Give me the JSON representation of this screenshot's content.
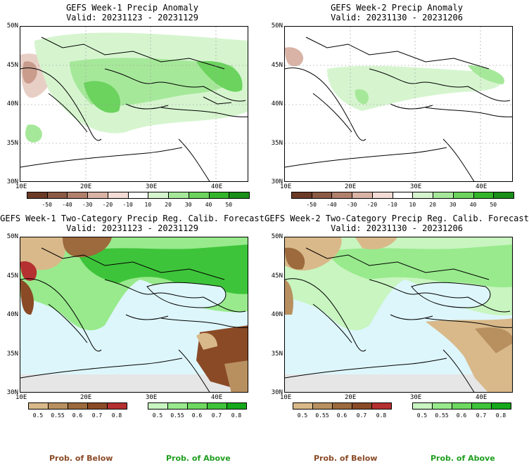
{
  "panels": [
    {
      "title": "GEFS Week-1 Precip Anomaly",
      "valid": "Valid: 20231123 - 20231129"
    },
    {
      "title": "GEFS Week-2 Precip Anomaly",
      "valid": "Valid: 20231130 - 20231206"
    },
    {
      "title": "GEFS Week-1 Two-Category Precip Reg. Calib. Forecast",
      "valid": "Valid: 20231123 - 20231129"
    },
    {
      "title": "GEFS Week-2 Two-Category Precip Reg. Calib. Forecast",
      "valid": "Valid: 20231130 - 20231206"
    }
  ],
  "axes": {
    "lat_labels": [
      "50N",
      "45N",
      "40N",
      "35N",
      "30N"
    ],
    "lon_labels": [
      "10E",
      "20E",
      "30E",
      "40E"
    ]
  },
  "anomaly_colorbar": {
    "labels": [
      "-50",
      "-40",
      "-30",
      "-20",
      "-10",
      "10",
      "20",
      "30",
      "40",
      "50"
    ],
    "colors": [
      "#6b3a26",
      "#8c5a44",
      "#b0806c",
      "#d9b3a6",
      "#f2dcd5",
      "#ffffff",
      "#d6f5cf",
      "#a6e89a",
      "#6bd35e",
      "#33b52b",
      "#1a8f1a"
    ]
  },
  "prob_below_colorbar": {
    "labels": [
      "0.5",
      "0.55",
      "0.6",
      "0.7",
      "0.8"
    ],
    "colors": [
      "#d9b98a",
      "#b89060",
      "#9c6a3c",
      "#8a4a26",
      "#b53030"
    ]
  },
  "prob_above_colorbar": {
    "labels": [
      "0.5",
      "0.55",
      "0.6",
      "0.7",
      "0.8"
    ],
    "colors": [
      "#c8f5c0",
      "#98ea8c",
      "#6ed860",
      "#3ec43a",
      "#14a81a"
    ]
  },
  "footer": {
    "below_label": "Prob. of Below",
    "above_label": "Prob. of Above",
    "below_color": "#8a4a26",
    "above_color": "#1f9e1f"
  }
}
